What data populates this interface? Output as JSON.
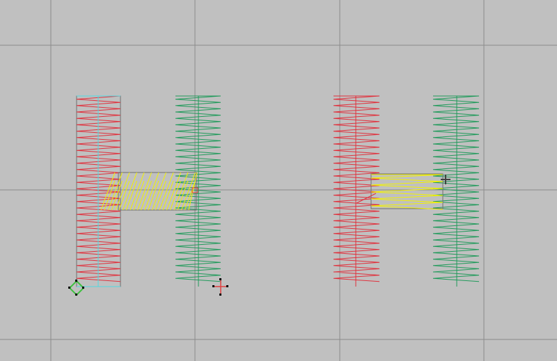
{
  "canvas": {
    "background": "#c0c0c0",
    "grid_color": "#8a8a8a",
    "outline_color": "#6e6e6e"
  },
  "colors": {
    "red": "#e0303c",
    "green": "#1f9a5a",
    "yellow": "#f2f200",
    "cyan": "#50d8e0",
    "selection_handle": "#000000",
    "start_marker": "#40c040",
    "end_marker": "#e04040"
  },
  "designs": [
    {
      "name": "letter-h-selected",
      "selected": true
    },
    {
      "name": "letter-h",
      "selected": false
    }
  ]
}
